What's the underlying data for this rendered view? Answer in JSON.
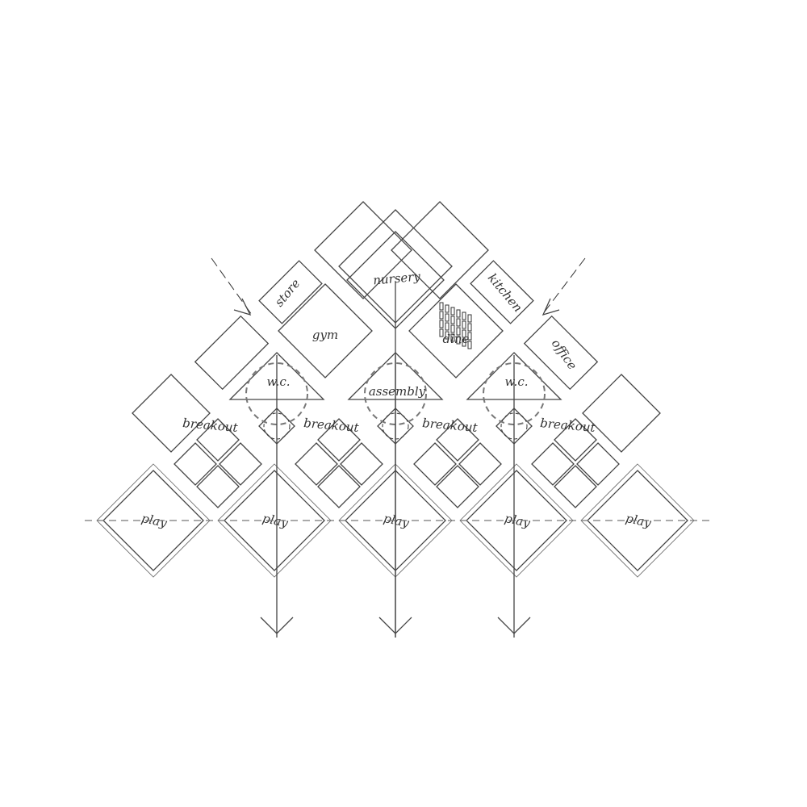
{
  "rooms": {
    "nursery": "nursery",
    "store": "store",
    "kitchen": "kitchen",
    "gym": "gym",
    "dining": "dine",
    "office": "office",
    "wc_left": "w.c.",
    "assembly": "assembly",
    "wc_right": "w.c.",
    "breakout": [
      "breakout",
      "breakout",
      "breakout",
      "breakout"
    ],
    "play": [
      "play",
      "play",
      "play",
      "play",
      "play"
    ]
  },
  "colors": {
    "nursery": "#f9b98a",
    "store": "#b3aee8",
    "gym": "#f7f0a8",
    "office": "#4f6a9e",
    "wc": "#7fb0c6",
    "assembly": "#c3e2f5",
    "breakout": "#c39aa7",
    "core": "#f58a8a",
    "pod": "#efb4d6",
    "play": "#e4f6d2"
  }
}
